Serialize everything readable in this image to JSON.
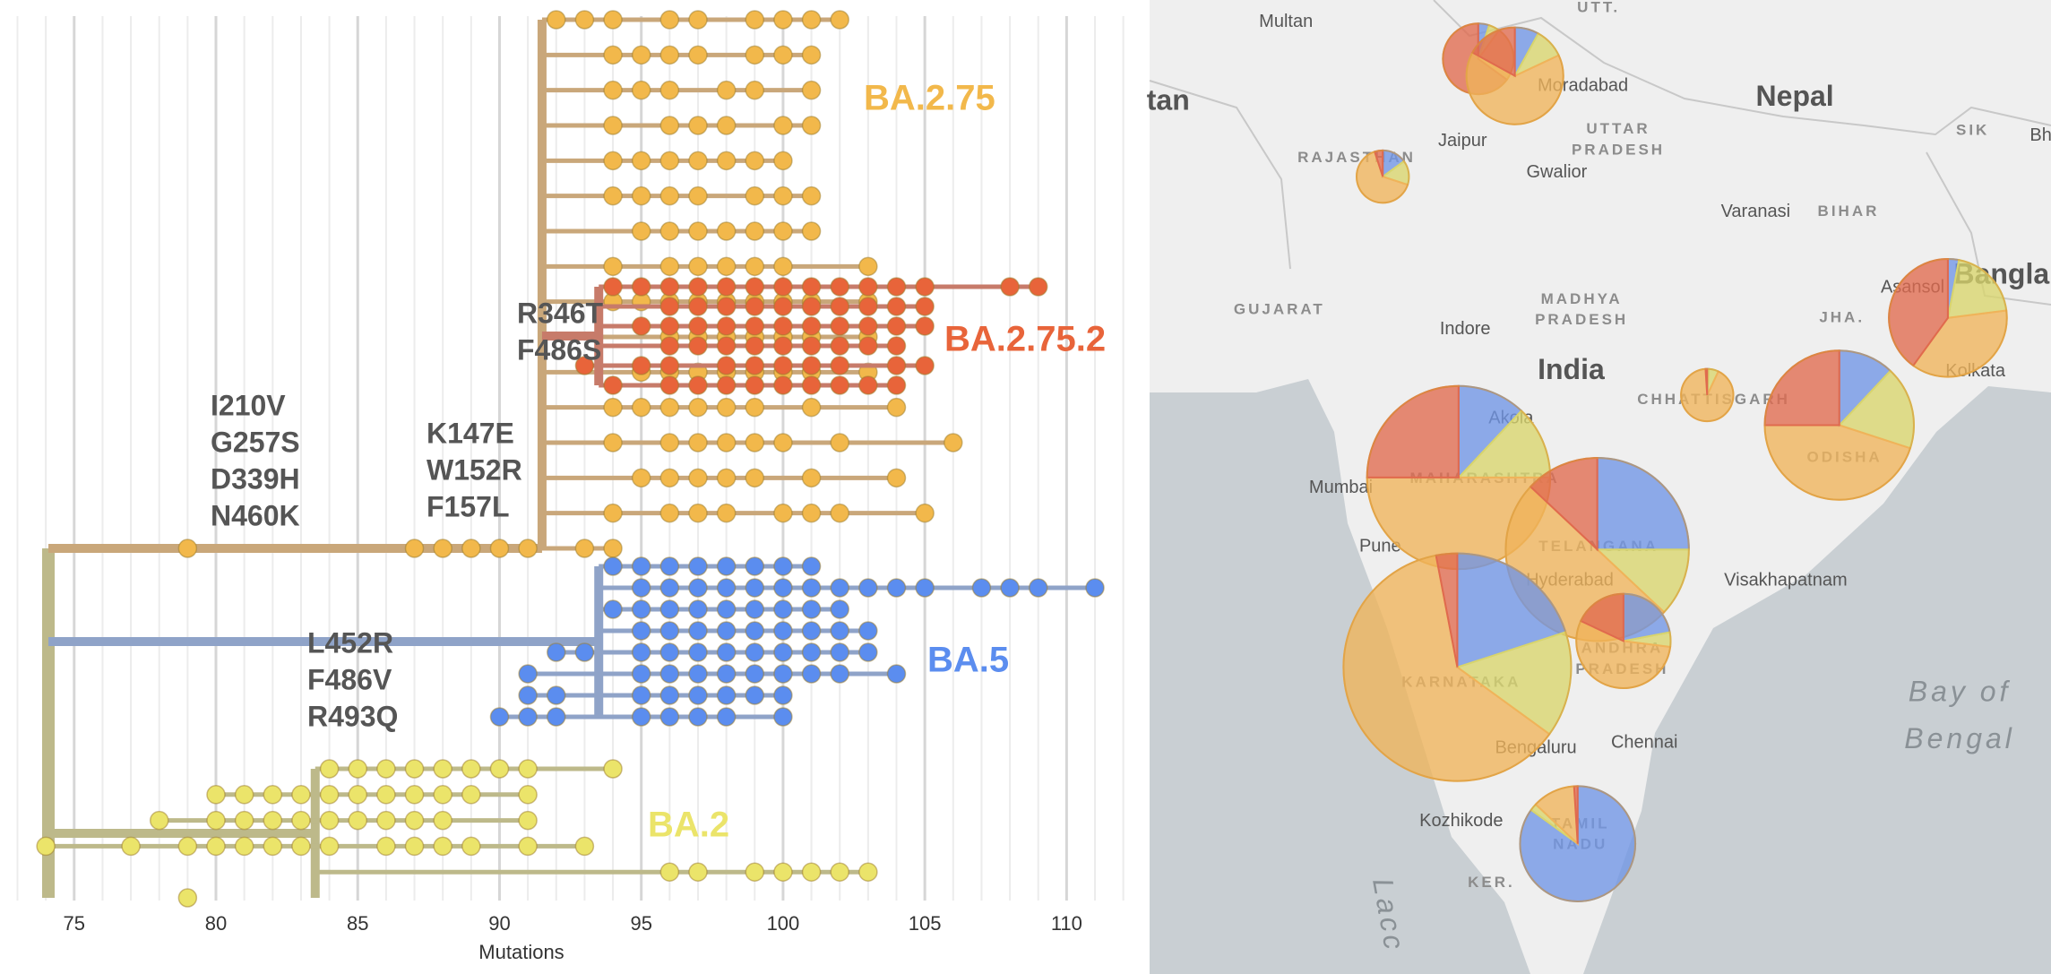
{
  "chart_data": [
    {
      "type": "tree",
      "xlabel": "Mutations",
      "xlim": [
        72.7,
        112.2
      ],
      "xticks": [
        75,
        80,
        85,
        90,
        95,
        100,
        105,
        110
      ],
      "grid": true,
      "grid_step": 1,
      "clades": [
        {
          "name": "BA.2.75",
          "color": "#f2b84b",
          "branch_color": "#c9a77a",
          "rows": [
            [
              92,
              93,
              94,
              96,
              97,
              99,
              100,
              101,
              102
            ],
            [
              94,
              95,
              96,
              97,
              99,
              100,
              101
            ],
            [
              94,
              95,
              96,
              98,
              99,
              101
            ],
            [
              94,
              96,
              97,
              98,
              100,
              101
            ],
            [
              94,
              95,
              96,
              97,
              98,
              99,
              100
            ],
            [
              94,
              95,
              96,
              97,
              99,
              100,
              101
            ],
            [
              95,
              96,
              97,
              98,
              99,
              100,
              101
            ],
            [
              94,
              96,
              97,
              98,
              99,
              100,
              103
            ],
            [
              94,
              95,
              96,
              97,
              98,
              99,
              100,
              101,
              103
            ],
            [
              96,
              97,
              98,
              99,
              100,
              101,
              103
            ],
            [
              95,
              96,
              97,
              98,
              99,
              100,
              101,
              103
            ],
            [
              94,
              95,
              96,
              97,
              98,
              99,
              101,
              104
            ],
            [
              94,
              96,
              97,
              98,
              99,
              100,
              102,
              106
            ],
            [
              95,
              96,
              97,
              98,
              99,
              101,
              104
            ],
            [
              94,
              96,
              97,
              98,
              100,
              101,
              102,
              105
            ],
            [
              79,
              87,
              88,
              89,
              90,
              91,
              93,
              94
            ]
          ]
        },
        {
          "name": "BA.2.75.2",
          "color": "#e8643a",
          "branch_color": "#c77b6a",
          "rows": [
            [
              94,
              95,
              96,
              97,
              98,
              99,
              100,
              101,
              102,
              103,
              104,
              105,
              108,
              109
            ],
            [
              96,
              97,
              98,
              99,
              100,
              101,
              102,
              103,
              104,
              105
            ],
            [
              95,
              96,
              97,
              98,
              99,
              100,
              101,
              102,
              103,
              104,
              105
            ],
            [
              96,
              97,
              98,
              99,
              100,
              101,
              102,
              103,
              104
            ],
            [
              93,
              95,
              96,
              98,
              99,
              100,
              101,
              102,
              104,
              105
            ],
            [
              94,
              96,
              97,
              98,
              99,
              100,
              101,
              102,
              103,
              104
            ]
          ]
        },
        {
          "name": "BA.5",
          "color": "#5b8def",
          "branch_color": "#8fa3c8",
          "rows": [
            [
              94,
              95,
              96,
              97,
              98,
              99,
              100,
              101
            ],
            [
              95,
              96,
              97,
              98,
              99,
              100,
              101,
              102,
              103,
              104,
              105,
              107,
              108,
              109,
              111
            ],
            [
              94,
              95,
              96,
              97,
              98,
              99,
              100,
              101,
              102
            ],
            [
              95,
              96,
              97,
              98,
              99,
              100,
              101,
              102,
              103
            ],
            [
              92,
              93,
              95,
              96,
              97,
              98,
              99,
              100,
              101,
              102,
              103
            ],
            [
              91,
              95,
              96,
              97,
              98,
              99,
              100,
              101,
              102,
              104
            ],
            [
              91,
              92,
              95,
              96,
              97,
              98,
              99,
              100
            ],
            [
              90,
              91,
              92,
              95,
              96,
              97,
              98,
              100
            ]
          ]
        },
        {
          "name": "BA.2",
          "color": "#ebe46a",
          "branch_color": "#bdb98a",
          "rows": [
            [
              84,
              85,
              86,
              87,
              88,
              89,
              90,
              91,
              94
            ],
            [
              80,
              81,
              82,
              83,
              84,
              85,
              86,
              87,
              88,
              89,
              91
            ],
            [
              78,
              80,
              81,
              82,
              83,
              84,
              85,
              86,
              87,
              88,
              91
            ],
            [
              74,
              77,
              79,
              80,
              81,
              82,
              83,
              84,
              86,
              87,
              88,
              89,
              91,
              93
            ],
            [
              96,
              97,
              99,
              100,
              101,
              102,
              103
            ],
            [
              79
            ]
          ]
        }
      ],
      "annotations": [
        {
          "lines": [
            "I210V",
            "G257S",
            "D339H",
            "N460K"
          ]
        },
        {
          "lines": [
            "R346T",
            "F486S"
          ]
        },
        {
          "lines": [
            "K147E",
            "W152R",
            "F157L"
          ]
        },
        {
          "lines": [
            "L452R",
            "F486V",
            "R493Q"
          ]
        }
      ]
    },
    {
      "type": "map",
      "slice_colors": [
        "#6f95e6",
        "#d9d56c",
        "#f0b35a",
        "#e06a4e"
      ],
      "pies": [
        {
          "count": 73,
          "values": [
            5,
            5,
            25,
            65
          ]
        },
        {
          "count": 137,
          "values": [
            8,
            10,
            65,
            17
          ]
        },
        {
          "count": 40,
          "values": [
            15,
            15,
            65,
            5
          ]
        },
        {
          "count": 203,
          "values": [
            3,
            20,
            37,
            40
          ]
        },
        {
          "count": 40,
          "values": [
            1,
            6,
            92,
            1
          ]
        },
        {
          "count": 325,
          "values": [
            12,
            18,
            45,
            25
          ]
        },
        {
          "count": 490,
          "values": [
            12,
            13,
            50,
            25
          ]
        },
        {
          "count": 490,
          "values": [
            25,
            12,
            50,
            13
          ]
        },
        {
          "count": 757,
          "values": [
            20,
            15,
            62,
            3
          ]
        },
        {
          "count": 130,
          "values": [
            22,
            5,
            55,
            18
          ]
        },
        {
          "count": 194,
          "values": [
            85,
            2,
            12,
            1
          ]
        }
      ],
      "places": [
        "Multan",
        "UTT.",
        "tan",
        "Nepal",
        "Moradabad",
        "Jaipur",
        "UTTAR",
        "PRADESH",
        "RAJASTHAN",
        "Gwalior",
        "Varanasi",
        "BIHAR",
        "SIK",
        "Bh",
        "GUJARAT",
        "MADHYA",
        "PRADESH",
        "Indore",
        "India",
        "JHA.",
        "Asansol",
        "Bangla",
        "Kolkata",
        "CHHATTISGARH",
        "Mumbai",
        "Akola",
        "MAHARASHTRA",
        "ODISHA",
        "Pune",
        "TELANGANA",
        "Hyderabad",
        "Visakhapatnam",
        "ANDHRA",
        "PRADESH",
        "KARNATAKA",
        "Bay of",
        "Bengal",
        "Bengaluru",
        "Chennai",
        "Kozhikode",
        "TAMIL",
        "NADU",
        "KER.",
        "Lacc"
      ]
    }
  ]
}
